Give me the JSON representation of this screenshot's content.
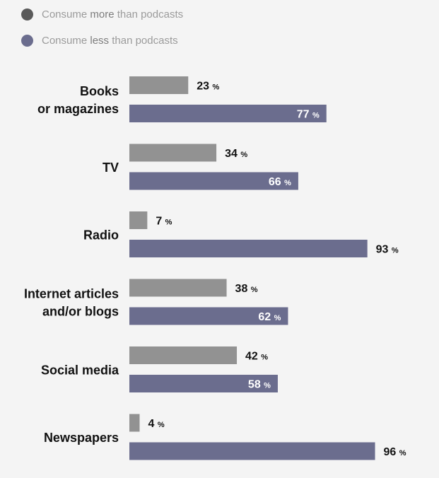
{
  "legend": [
    {
      "prefix": "Consume ",
      "keyword": "more",
      "suffix": " than podcasts",
      "color": "#5a5a5a"
    },
    {
      "prefix": "Consume ",
      "keyword": "less",
      "suffix": " than podcasts",
      "color": "#6b6d8e"
    }
  ],
  "colors": {
    "more_bar": "#929292",
    "less_bar": "#6b6d8e",
    "label_dark": "#111111",
    "label_light": "#ffffff"
  },
  "chart_data": {
    "type": "bar",
    "orientation": "horizontal",
    "unit": "%",
    "categories": [
      [
        "Books",
        "or magazines"
      ],
      [
        "TV"
      ],
      [
        "Radio"
      ],
      [
        "Internet articles",
        "and/or blogs"
      ],
      [
        "Social media"
      ],
      [
        "Newspapers"
      ]
    ],
    "series": [
      {
        "name": "Consume more than podcasts",
        "values": [
          23,
          34,
          7,
          38,
          42,
          4
        ]
      },
      {
        "name": "Consume less than podcasts",
        "values": [
          77,
          66,
          93,
          62,
          58,
          96
        ]
      }
    ],
    "xlim": [
      0,
      100
    ],
    "grid": false,
    "legend_position": "top-left"
  }
}
